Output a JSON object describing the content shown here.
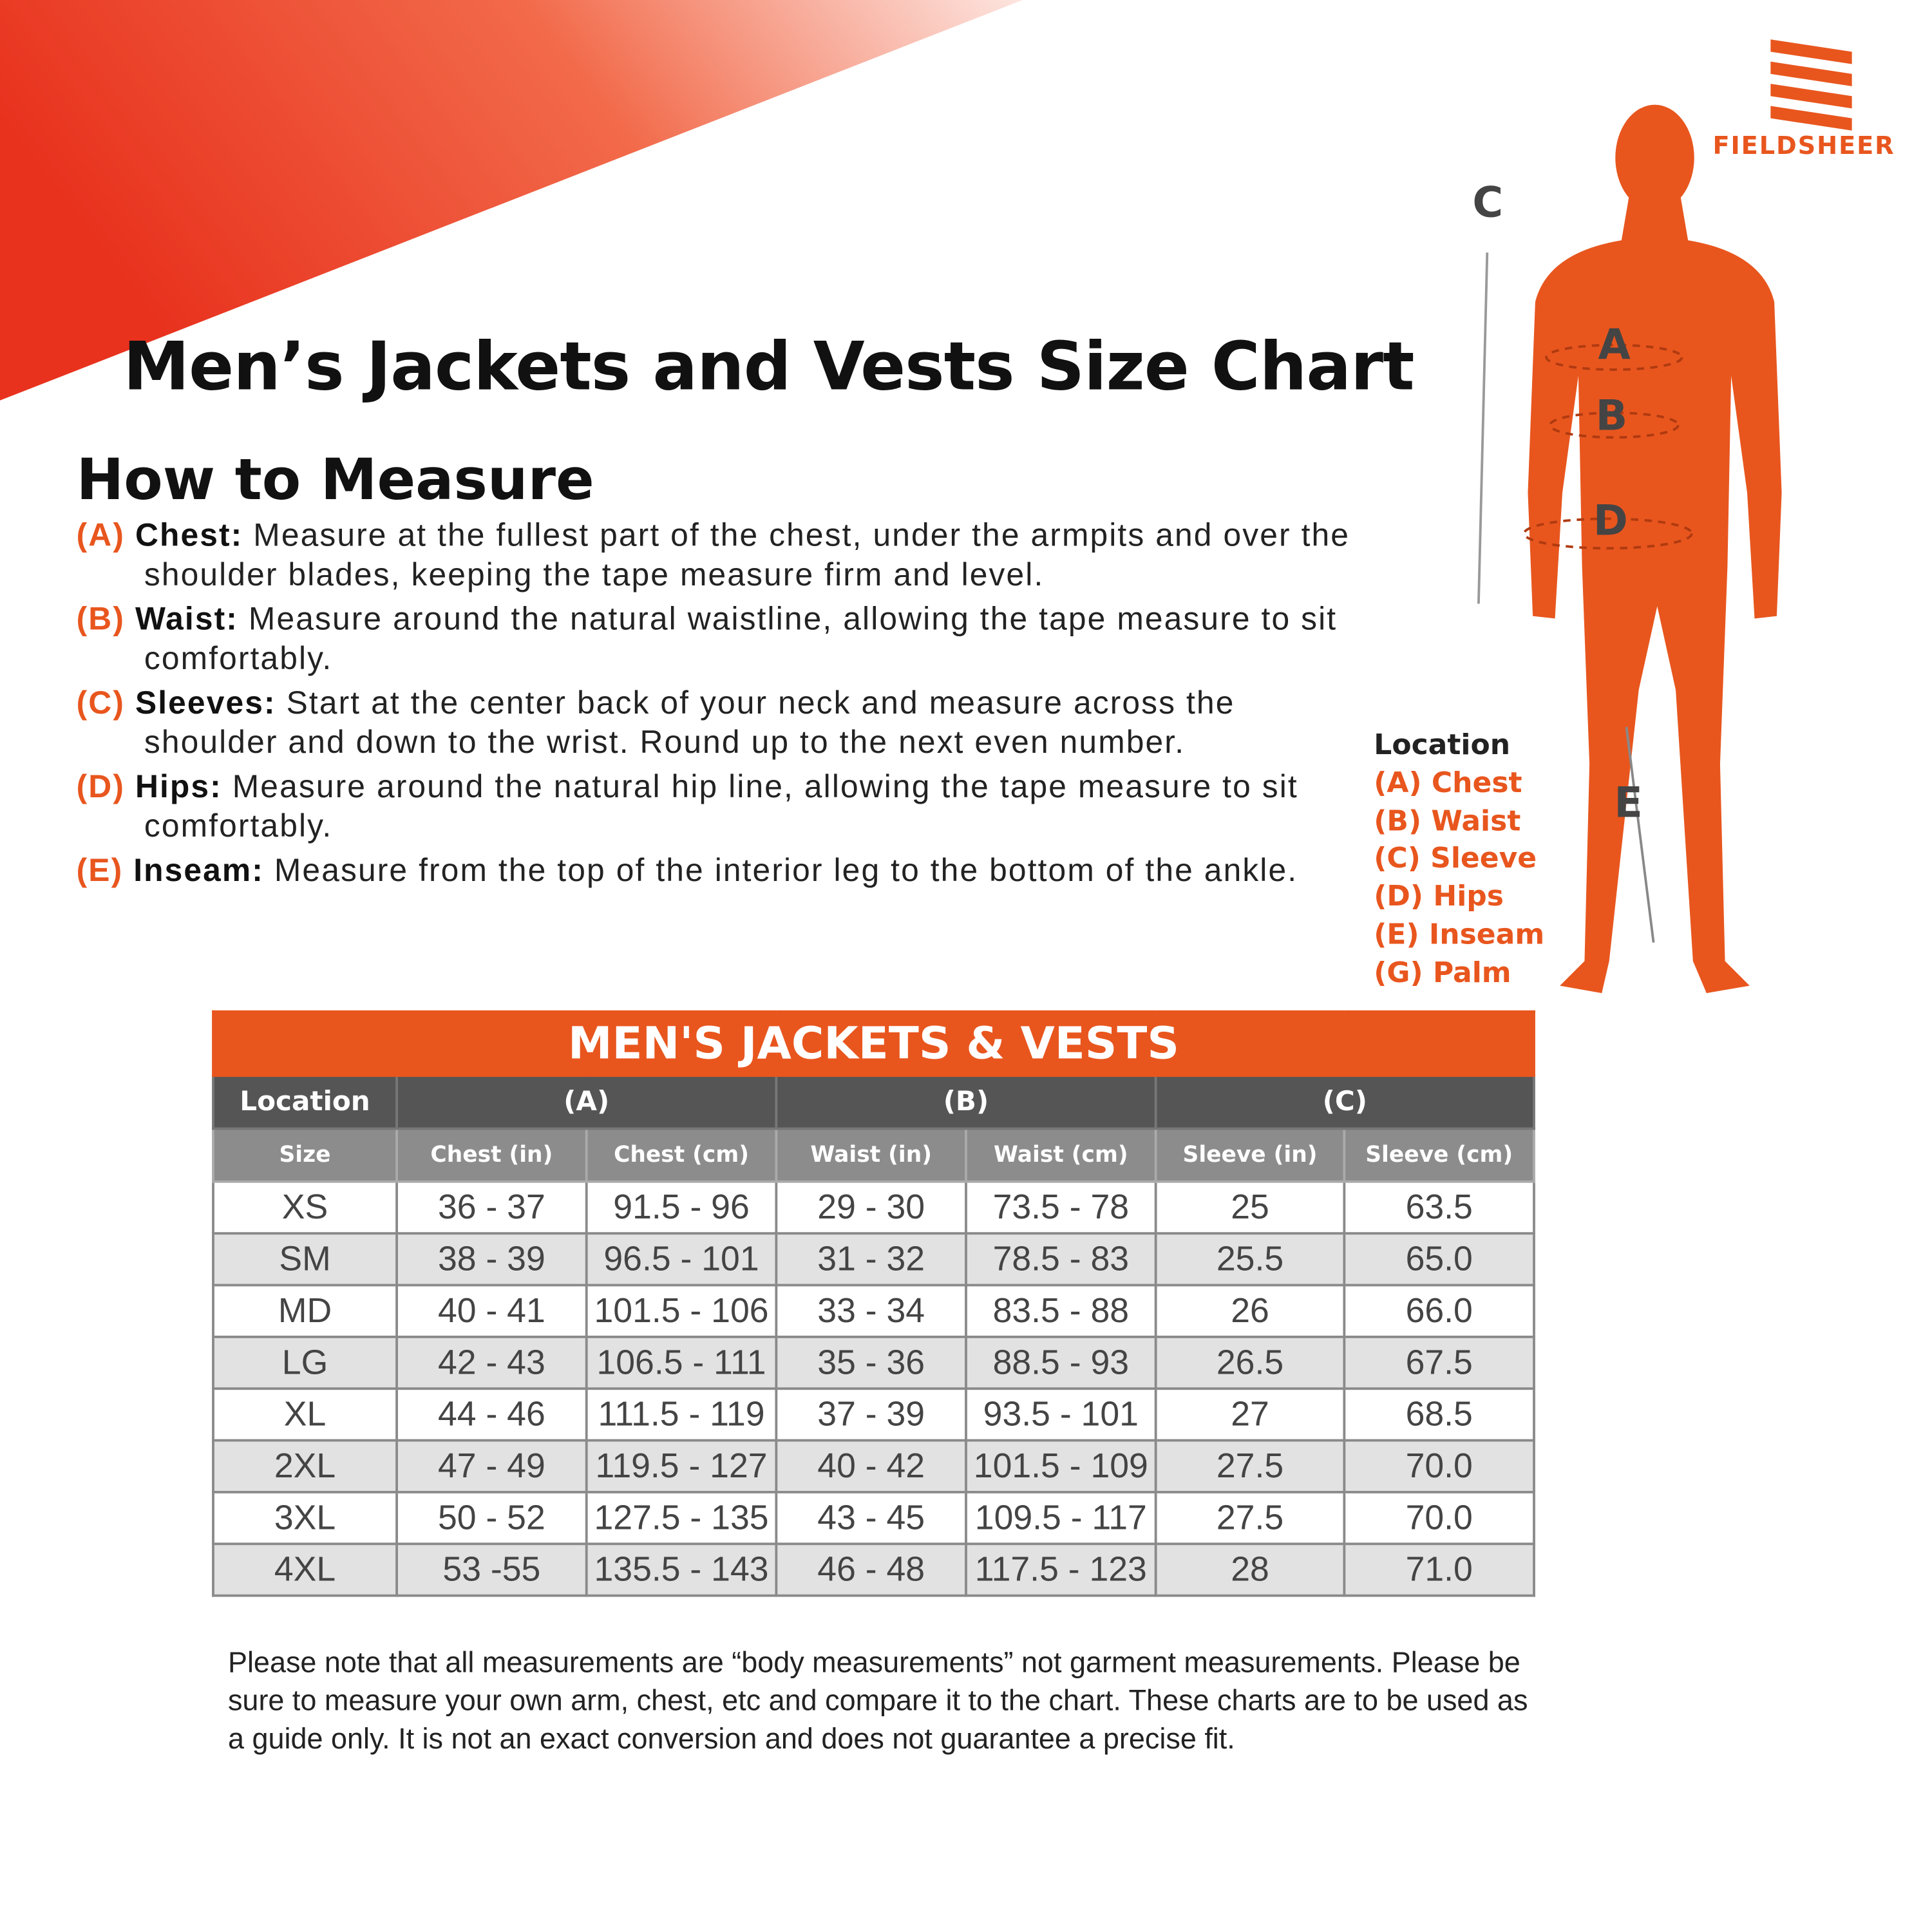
{
  "brand": "FIELDSHEER",
  "title": "Men’s Jackets and Vests Size Chart",
  "how_to_measure": {
    "title": "How to Measure",
    "items": [
      {
        "label": "(A)",
        "name": "Chest:",
        "text": "Measure at the fullest part of the chest, under the armpits and over the shoulder blades, keeping the tape measure firm and level."
      },
      {
        "label": "(B)",
        "name": "Waist:",
        "text": "Measure around the natural waistline, allowing the tape measure to sit comfortably."
      },
      {
        "label": "(C)",
        "name": "Sleeves:",
        "text": "Start at the center back of your neck and measure across the shoulder and down to the wrist. Round up to the next even number."
      },
      {
        "label": "(D)",
        "name": "Hips:",
        "text": "Measure around the natural hip line, allowing the tape measure to sit comfortably."
      },
      {
        "label": "(E)",
        "name": "Inseam:",
        "text": "Measure from the top of the interior leg to the bottom of the ankle."
      }
    ]
  },
  "location_legend": {
    "title": "Location",
    "items": [
      "(A) Chest",
      "(B) Waist",
      "(C) Sleeve",
      "(D) Hips",
      "(E) Inseam",
      "(G) Palm"
    ]
  },
  "figure_labels": [
    "C",
    "A",
    "B",
    "D",
    "E"
  ],
  "table": {
    "title": "MEN'S JACKETS & VESTS",
    "groups": [
      "Location",
      "(A)",
      "(B)",
      "(C)"
    ],
    "columns": [
      "Size",
      "Chest (in)",
      "Chest (cm)",
      "Waist (in)",
      "Waist (cm)",
      "Sleeve (in)",
      "Sleeve (cm)"
    ],
    "rows": [
      [
        "XS",
        "36 - 37",
        "91.5 - 96",
        "29 - 30",
        "73.5 - 78",
        "25",
        "63.5"
      ],
      [
        "SM",
        "38 - 39",
        "96.5 - 101",
        "31 - 32",
        "78.5 - 83",
        "25.5",
        "65.0"
      ],
      [
        "MD",
        "40 - 41",
        "101.5 - 106",
        "33 - 34",
        "83.5 - 88",
        "26",
        "66.0"
      ],
      [
        "LG",
        "42 - 43",
        "106.5 - 111",
        "35 - 36",
        "88.5 - 93",
        "26.5",
        "67.5"
      ],
      [
        "XL",
        "44 - 46",
        "111.5 - 119",
        "37 - 39",
        "93.5 - 101",
        "27",
        "68.5"
      ],
      [
        "2XL",
        "47 - 49",
        "119.5 - 127",
        "40 - 42",
        "101.5 - 109",
        "27.5",
        "70.0"
      ],
      [
        "3XL",
        "50 - 52",
        "127.5 - 135",
        "43 - 45",
        "109.5 - 117",
        "27.5",
        "70.0"
      ],
      [
        "4XL",
        "53 -55",
        "135.5 - 143",
        "46 - 48",
        "117.5 - 123",
        "28",
        "71.0"
      ]
    ]
  },
  "note": "Please note that all measurements are “body measurements” not garment measurements. Please be sure to measure your own arm, chest, etc and compare it to the chart. These charts are to be used as a guide only. It is not an exact conversion and does not guarantee a precise fit."
}
